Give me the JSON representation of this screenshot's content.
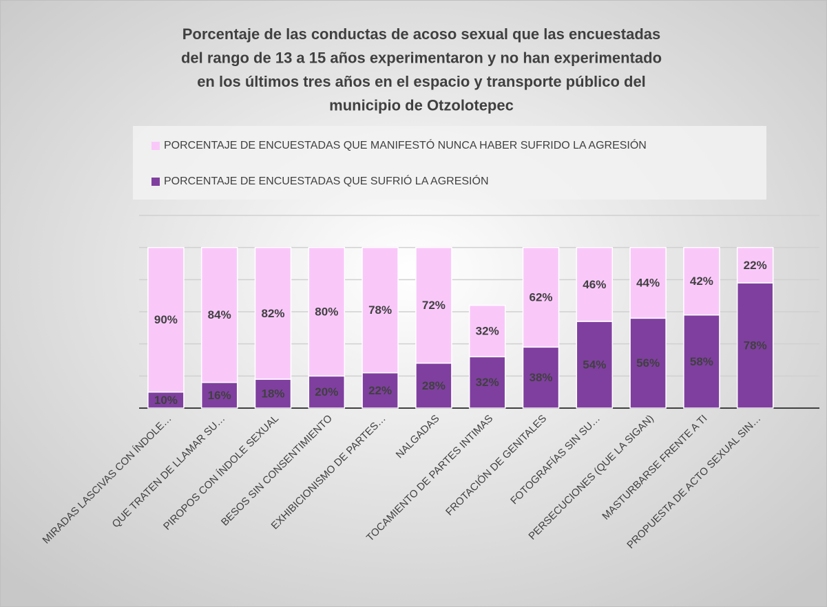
{
  "chart_data": {
    "type": "bar",
    "stacked": true,
    "title": [
      "Porcentaje de las conductas de acoso sexual que las encuestadas",
      "del rango de 13 a 15 años experimentaron y no han experimentado",
      "en los últimos tres años en el espacio y transporte público del",
      "municipio de Otzolotepec"
    ],
    "categories": [
      "MIRADAS LASCIVAS CON ÍNDOLE…",
      "QUE TRATEN DE LLAMAR SU…",
      "PIROPOS CON ÍNDOLE SEXUAL",
      "BESOS SIN CONSENTIMIENTO",
      "EXHIBICIONISMO DE PARTES…",
      "NALGADAS",
      "TOCAMIENTO DE PARTES INTIMAS",
      "FROTACIÓN DE GENITALES",
      "FOTOGRAFÍAS SIN SU…",
      "PERSECUCIONES (QUE LA SIGAN)",
      "MASTURBARSE FRENTE A TI",
      "PROPUESTA DE ACTO SEXUAL SIN…"
    ],
    "series": [
      {
        "name": "PORCENTAJE DE ENCUESTADAS QUE SUFRIÓ LA AGRESIÓN",
        "color": "#7f3f9f",
        "values": [
          10,
          16,
          18,
          20,
          22,
          28,
          32,
          38,
          54,
          56,
          58,
          78
        ],
        "value_labels": [
          "10%",
          "16%",
          "18%",
          "20%",
          "22%",
          "28%",
          "32%",
          "38%",
          "54%",
          "56%",
          "58%",
          "78%"
        ]
      },
      {
        "name": "PORCENTAJE DE ENCUESTADAS QUE MANIFESTÓ NUNCA HABER SUFRIDO LA AGRESIÓN",
        "color": "#f9c8f9",
        "values": [
          90,
          84,
          82,
          80,
          78,
          72,
          32,
          62,
          46,
          44,
          42,
          22
        ],
        "value_labels": [
          "90%",
          "84%",
          "82%",
          "80%",
          "78%",
          "72%",
          "32%",
          "62%",
          "46%",
          "44%",
          "42%",
          "22%"
        ]
      }
    ],
    "ylim": [
      0,
      120
    ],
    "yticks": [
      0,
      20,
      40,
      60,
      80,
      100,
      120
    ],
    "grid": true
  }
}
